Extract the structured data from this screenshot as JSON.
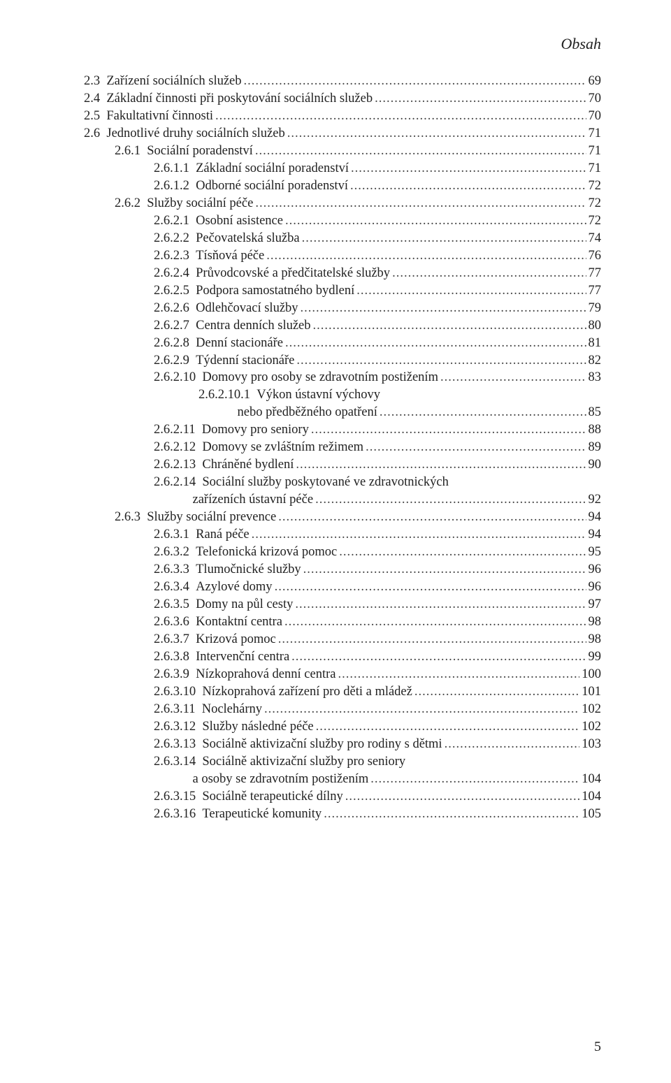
{
  "header": {
    "title": "Obsah"
  },
  "page_number": "5",
  "colors": {
    "text": "#222222",
    "leader": "#444444",
    "background": "#ffffff"
  },
  "typography": {
    "body_fontsize_pt": 14,
    "header_fontsize_pt": 17,
    "font_family": "Georgia, Times New Roman, serif"
  },
  "toc": [
    {
      "indent": "ind0",
      "label": "2.3",
      "text": "Zařízení sociálních služeb",
      "page": "69"
    },
    {
      "indent": "ind0",
      "label": "2.4",
      "text": "Základní činnosti při poskytování sociálních služeb",
      "page": "70"
    },
    {
      "indent": "ind0",
      "label": "2.5",
      "text": "Fakultativní činnosti",
      "page": "70"
    },
    {
      "indent": "ind0",
      "label": "2.6",
      "text": "Jednotlivé druhy sociálních služeb",
      "page": "71"
    },
    {
      "indent": "ind1",
      "label": "2.6.1",
      "text": "Sociální poradenství",
      "page": "71"
    },
    {
      "indent": "ind2",
      "label": "2.6.1.1",
      "text": "Základní sociální poradenství",
      "page": "71"
    },
    {
      "indent": "ind2",
      "label": "2.6.1.2",
      "text": "Odborné sociální poradenství",
      "page": "72"
    },
    {
      "indent": "ind1",
      "label": "2.6.2",
      "text": "Služby sociální péče",
      "page": "72"
    },
    {
      "indent": "ind2",
      "label": "2.6.2.1",
      "text": "Osobní asistence",
      "page": "72"
    },
    {
      "indent": "ind2",
      "label": "2.6.2.2",
      "text": "Pečovatelská služba",
      "page": "74"
    },
    {
      "indent": "ind2",
      "label": "2.6.2.3",
      "text": "Tísňová péče",
      "page": "76"
    },
    {
      "indent": "ind2",
      "label": "2.6.2.4",
      "text": "Průvodcovské a předčitatelské služby",
      "page": "77"
    },
    {
      "indent": "ind2",
      "label": "2.6.2.5",
      "text": "Podpora samostatného bydlení",
      "page": "77"
    },
    {
      "indent": "ind2",
      "label": "2.6.2.6",
      "text": "Odlehčovací služby",
      "page": "79"
    },
    {
      "indent": "ind2",
      "label": "2.6.2.7",
      "text": "Centra denních služeb",
      "page": "80"
    },
    {
      "indent": "ind2",
      "label": "2.6.2.8",
      "text": "Denní stacionáře",
      "page": "81"
    },
    {
      "indent": "ind2",
      "label": "2.6.2.9",
      "text": "Týdenní stacionáře",
      "page": "82"
    },
    {
      "indent": "ind2",
      "label": "2.6.2.10",
      "text": "Domovy pro osoby se zdravotním postižením",
      "page": "83"
    },
    {
      "indent": "ind3",
      "label": "2.6.2.10.1",
      "text": "Výkon ústavní výchovy",
      "continuation": true
    },
    {
      "indent": "ind3",
      "label": "",
      "text": "nebo předběžného opatření",
      "page": "85",
      "cont_line": true
    },
    {
      "indent": "ind2",
      "label": "2.6.2.11",
      "text": "Domovy pro seniory",
      "page": "88"
    },
    {
      "indent": "ind2",
      "label": "2.6.2.12",
      "text": "Domovy se zvláštním režimem",
      "page": "89"
    },
    {
      "indent": "ind2",
      "label": "2.6.2.13",
      "text": "Chráněné bydlení",
      "page": "90"
    },
    {
      "indent": "ind2",
      "label": "2.6.2.14",
      "text": "Sociální služby poskytované ve zdravotnických",
      "continuation": true
    },
    {
      "indent": "ind2",
      "label": "",
      "text": "zařízeních ústavní péče",
      "page": "92",
      "cont_line": true,
      "cont_pad": "            "
    },
    {
      "indent": "ind1",
      "label": "2.6.3",
      "text": "Služby sociální prevence",
      "page": "94"
    },
    {
      "indent": "ind2",
      "label": "2.6.3.1",
      "text": "Raná péče",
      "page": "94"
    },
    {
      "indent": "ind2",
      "label": "2.6.3.2",
      "text": "Telefonická krizová pomoc",
      "page": "95"
    },
    {
      "indent": "ind2",
      "label": "2.6.3.3",
      "text": "Tlumočnické služby",
      "page": "96"
    },
    {
      "indent": "ind2",
      "label": "2.6.3.4",
      "text": "Azylové domy",
      "page": "96"
    },
    {
      "indent": "ind2",
      "label": "2.6.3.5",
      "text": "Domy na půl cesty",
      "page": "97"
    },
    {
      "indent": "ind2",
      "label": "2.6.3.6",
      "text": "Kontaktní centra",
      "page": "98"
    },
    {
      "indent": "ind2",
      "label": "2.6.3.7",
      "text": "Krizová pomoc",
      "page": "98"
    },
    {
      "indent": "ind2",
      "label": "2.6.3.8",
      "text": "Intervenční centra",
      "page": "99"
    },
    {
      "indent": "ind2",
      "label": "2.6.3.9",
      "text": "Nízkoprahová denní centra",
      "page": "100"
    },
    {
      "indent": "ind2",
      "label": "2.6.3.10",
      "text": "Nízkoprahová zařízení pro děti a mládež",
      "page": "101"
    },
    {
      "indent": "ind2",
      "label": "2.6.3.11",
      "text": "Noclehárny",
      "page": "102"
    },
    {
      "indent": "ind2",
      "label": "2.6.3.12",
      "text": "Služby následné péče",
      "page": "102"
    },
    {
      "indent": "ind2",
      "label": "2.6.3.13",
      "text": "Sociálně aktivizační služby pro rodiny s dětmi",
      "page": "103"
    },
    {
      "indent": "ind2",
      "label": "2.6.3.14",
      "text": "Sociálně aktivizační služby pro seniory",
      "continuation": true
    },
    {
      "indent": "ind2",
      "label": "",
      "text": "a osoby se zdravotním postižením",
      "page": "104",
      "cont_line": true,
      "cont_pad": "            "
    },
    {
      "indent": "ind2",
      "label": "2.6.3.15",
      "text": "Sociálně terapeutické dílny",
      "page": "104"
    },
    {
      "indent": "ind2",
      "label": "2.6.3.16",
      "text": "Terapeutické komunity",
      "page": "105"
    }
  ]
}
